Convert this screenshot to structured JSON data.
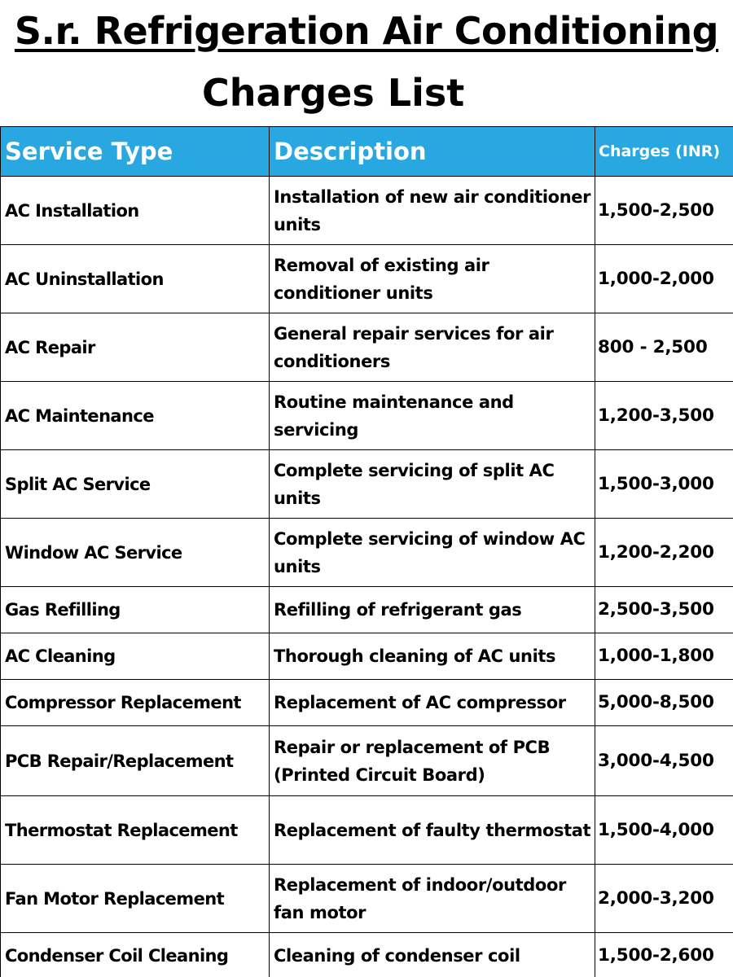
{
  "header": {
    "title": "S.r. Refrigeration Air Conditioning",
    "subtitle": "Charges List"
  },
  "colors": {
    "header_background": "#29a7e1",
    "header_text": "#ffffff",
    "body_text": "#000000",
    "border": "#000000"
  },
  "table": {
    "columns": [
      "Service Type",
      "Description",
      "Charges (INR)"
    ],
    "rows": [
      {
        "service": "AC Installation",
        "description": "Installation of new air conditioner units",
        "charges": "1,500-2,500"
      },
      {
        "service": "AC Uninstallation",
        "description": "Removal of existing air conditioner units",
        "charges": "1,000-2,000"
      },
      {
        "service": "AC Repair",
        "description": "General repair services for air conditioners",
        "charges": "800 - 2,500"
      },
      {
        "service": "AC Maintenance",
        "description": "Routine maintenance and servicing",
        "charges": "1,200-3,500"
      },
      {
        "service": "Split AC Service",
        "description": "Complete servicing of split AC units",
        "charges": "1,500-3,000"
      },
      {
        "service": "Window AC Service",
        "description": "Complete servicing of window AC units",
        "charges": "1,200-2,200"
      },
      {
        "service": "Gas Refilling",
        "description": "Refilling of refrigerant gas",
        "charges": "2,500-3,500"
      },
      {
        "service": "AC Cleaning",
        "description": "Thorough cleaning of AC units",
        "charges": "1,000-1,800"
      },
      {
        "service": "Compressor Replacement",
        "description": "Replacement of AC compressor",
        "charges": "5,000-8,500"
      },
      {
        "service": "PCB Repair/Replacement",
        "description": "Repair or replacement of PCB (Printed Circuit Board)",
        "charges": "3,000-4,500"
      },
      {
        "service": "Thermostat Replacement",
        "description": "Replacement of faulty thermostat",
        "charges": "1,500-4,000"
      },
      {
        "service": "Fan Motor Replacement",
        "description": "Replacement of indoor/outdoor fan motor",
        "charges": "2,000-3,200"
      },
      {
        "service": "Condenser Coil Cleaning",
        "description": "Cleaning of condenser coil",
        "charges": "1,500-2,600"
      }
    ]
  }
}
